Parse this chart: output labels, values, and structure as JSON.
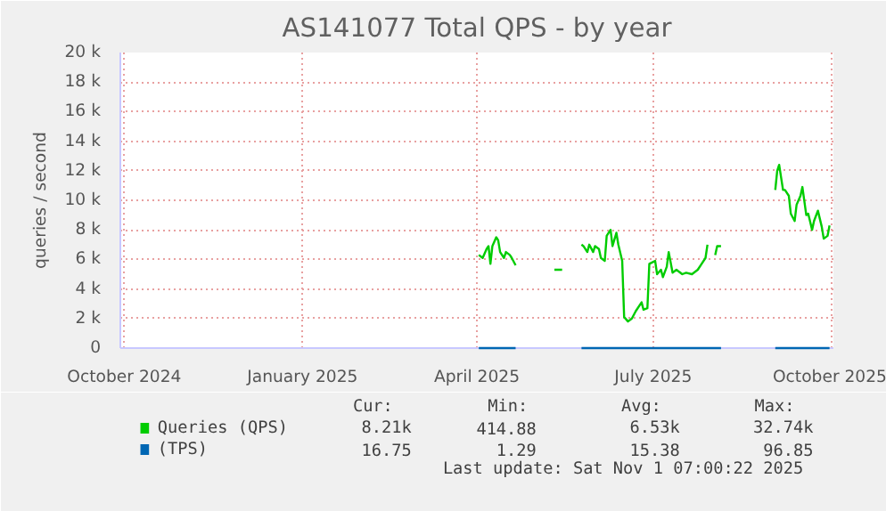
{
  "chart_data": {
    "type": "line",
    "title": "AS141077 Total QPS - by year",
    "ylabel": "queries / second",
    "xlim": [
      "2024-09-29",
      "2025-10-02"
    ],
    "ylim": [
      0,
      20000
    ],
    "xticks": [
      {
        "value": "2024-10-01",
        "label": "October 2024"
      },
      {
        "value": "2025-01-01",
        "label": "January 2025"
      },
      {
        "value": "2025-04-01",
        "label": "April 2025"
      },
      {
        "value": "2025-07-01",
        "label": "July 2025"
      },
      {
        "value": "2025-10-01",
        "label": "October 2025"
      }
    ],
    "yticks": [
      0,
      {
        "value": 2000,
        "label": "2 k"
      },
      {
        "value": 4000,
        "label": "4 k"
      },
      {
        "value": 6000,
        "label": "6 k"
      },
      {
        "value": 8000,
        "label": "8 k"
      },
      {
        "value": 10000,
        "label": "10 k"
      },
      {
        "value": 12000,
        "label": "12 k"
      },
      {
        "value": 14000,
        "label": "14 k"
      },
      {
        "value": 16000,
        "label": "16 k"
      },
      {
        "value": 18000,
        "label": "18 k"
      },
      {
        "value": 20000,
        "label": "20 k"
      }
    ],
    "grid": true,
    "legend": "bottom",
    "series": [
      {
        "name": "Queries (QPS)",
        "color": "#00cc00",
        "x": [
          "2025-04-02",
          "2025-04-04",
          "2025-04-06",
          "2025-04-07",
          "2025-04-08",
          "2025-04-09",
          "2025-04-11",
          "2025-04-12",
          "2025-04-13",
          "2025-04-15",
          "2025-04-16",
          "2025-04-18",
          "2025-04-19",
          "2025-04-21",
          "2025-04-26",
          "2025-05-11",
          "2025-05-15",
          "2025-05-18",
          "2025-05-25",
          "2025-05-26",
          "2025-05-28",
          "2025-05-29",
          "2025-05-31",
          "2025-06-01",
          "2025-06-03",
          "2025-06-04",
          "2025-06-06",
          "2025-06-07",
          "2025-06-09",
          "2025-06-10",
          "2025-06-12",
          "2025-06-13",
          "2025-06-15",
          "2025-06-16",
          "2025-06-18",
          "2025-06-20",
          "2025-06-22",
          "2025-06-25",
          "2025-06-26",
          "2025-06-28",
          "2025-06-29",
          "2025-07-02",
          "2025-07-03",
          "2025-07-05",
          "2025-07-06",
          "2025-07-08",
          "2025-07-09",
          "2025-07-11",
          "2025-07-13",
          "2025-07-16",
          "2025-07-18",
          "2025-07-21",
          "2025-07-24",
          "2025-07-26",
          "2025-07-28",
          "2025-07-29",
          "2025-07-31",
          "2025-08-02",
          "2025-08-03",
          "2025-08-05",
          "2025-08-15",
          "2025-09-02",
          "2025-09-03",
          "2025-09-04",
          "2025-09-06",
          "2025-09-07",
          "2025-09-09",
          "2025-09-10",
          "2025-09-12",
          "2025-09-13",
          "2025-09-15",
          "2025-09-16",
          "2025-09-18",
          "2025-09-19",
          "2025-09-21",
          "2025-09-22",
          "2025-09-24",
          "2025-09-26",
          "2025-09-27",
          "2025-09-29",
          "2025-09-30"
        ],
        "values": [
          6300,
          6100,
          6700,
          6900,
          5700,
          6900,
          7500,
          7300,
          6500,
          6100,
          6500,
          6300,
          6100,
          5600,
          null,
          5300,
          5300,
          null,
          7000,
          6900,
          6500,
          7000,
          6500,
          6900,
          6700,
          6100,
          5900,
          7600,
          8000,
          6900,
          7800,
          7000,
          5900,
          2100,
          1800,
          2000,
          2500,
          3100,
          2600,
          2700,
          5700,
          5900,
          5000,
          5300,
          4800,
          5500,
          6500,
          5100,
          5300,
          5000,
          5100,
          5000,
          5300,
          5700,
          6100,
          7000,
          null,
          6300,
          6900,
          6900,
          null,
          10700,
          12000,
          12400,
          10700,
          10700,
          10300,
          9100,
          8600,
          9700,
          10300,
          10900,
          9000,
          9100,
          8000,
          8600,
          9300,
          8200,
          7400,
          7600,
          8300
        ]
      },
      {
        "name": "(TPS)",
        "color": "#0066b3",
        "x": [
          "2025-04-02",
          "2025-04-21",
          "2025-05-01",
          "2025-05-25",
          "2025-08-05",
          "2025-08-15",
          "2025-09-02",
          "2025-09-30"
        ],
        "values": [
          0,
          0,
          null,
          0,
          0,
          null,
          0,
          0
        ]
      }
    ],
    "annotations": [
      "Cur:",
      "Min:",
      "Avg:",
      "Max:",
      "8.21k",
      "414.88",
      "6.53k",
      "32.74k",
      "16.75",
      "1.29",
      "15.38",
      "96.85",
      "Last update: Sat Nov  1 07:00:22 2025"
    ]
  }
}
